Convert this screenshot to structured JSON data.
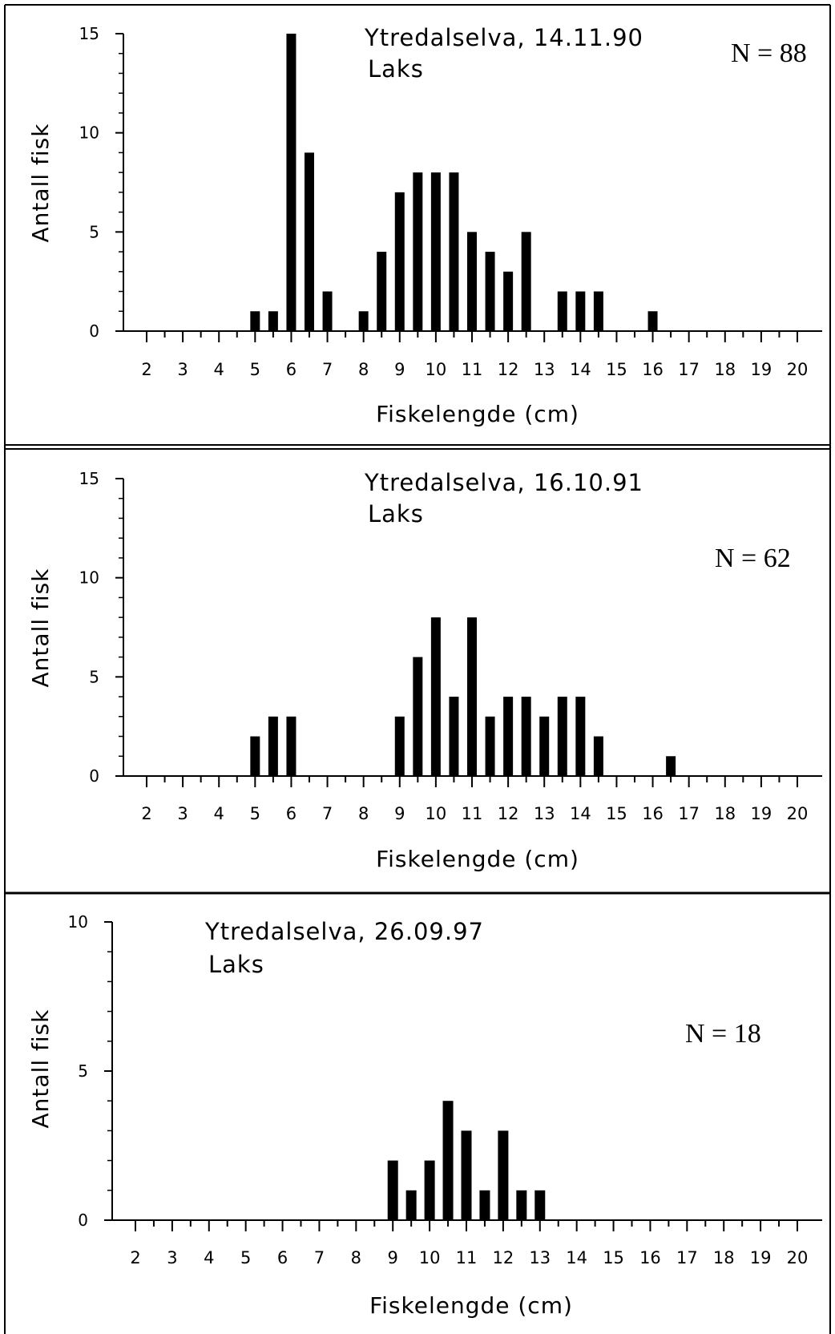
{
  "chart_data": [
    {
      "type": "bar",
      "title": "Ytredalselva, 14.11.90",
      "subtitle": "Laks",
      "n_label": "N =  88",
      "xlabel": "Fiskelengde (cm)",
      "ylabel": "Antall fisk",
      "xlim": [
        1.5,
        20.5
      ],
      "ylim": [
        0,
        15
      ],
      "yticks": [
        0,
        5,
        10,
        15
      ],
      "xticks": [
        2,
        3,
        4,
        5,
        6,
        7,
        8,
        9,
        10,
        11,
        12,
        13,
        14,
        15,
        16,
        17,
        18,
        19,
        20
      ],
      "x": [
        5,
        5.5,
        6,
        6.5,
        7,
        8,
        8.5,
        9,
        9.5,
        10,
        10.5,
        11,
        11.5,
        12,
        12.5,
        13.5,
        14,
        14.5,
        16
      ],
      "values": [
        1,
        1,
        15,
        9,
        2,
        1,
        4,
        7,
        8,
        8,
        8,
        5,
        4,
        3,
        5,
        2,
        2,
        2,
        1
      ]
    },
    {
      "type": "bar",
      "title": "Ytredalselva, 16.10.91",
      "subtitle": "Laks",
      "n_label": "N = 62",
      "xlabel": "Fiskelengde (cm)",
      "ylabel": "Antall fisk",
      "xlim": [
        1.5,
        20.5
      ],
      "ylim": [
        0,
        15
      ],
      "yticks": [
        0,
        5,
        10,
        15
      ],
      "xticks": [
        2,
        3,
        4,
        5,
        6,
        7,
        8,
        9,
        10,
        11,
        12,
        13,
        14,
        15,
        16,
        17,
        18,
        19,
        20
      ],
      "x": [
        5,
        5.5,
        6,
        9,
        9.5,
        10,
        10.5,
        11,
        11.5,
        12,
        12.5,
        13,
        13.5,
        14,
        14.5,
        16.5
      ],
      "values": [
        2,
        3,
        3,
        3,
        6,
        8,
        4,
        8,
        3,
        4,
        4,
        3,
        4,
        4,
        2,
        1
      ]
    },
    {
      "type": "bar",
      "title": "Ytredalselva, 26.09.97",
      "subtitle": "Laks",
      "n_label": "N = 18",
      "xlabel": "Fiskelengde (cm)",
      "ylabel": "Antall fisk",
      "xlim": [
        1.5,
        20.5
      ],
      "ylim": [
        0,
        10
      ],
      "yticks": [
        0,
        5,
        10
      ],
      "xticks": [
        2,
        3,
        4,
        5,
        6,
        7,
        8,
        9,
        10,
        11,
        12,
        13,
        14,
        15,
        16,
        17,
        18,
        19,
        20
      ],
      "x": [
        9,
        9.5,
        10,
        10.5,
        11,
        11.5,
        12,
        12.5,
        13
      ],
      "values": [
        2,
        1,
        2,
        4,
        3,
        1,
        3,
        1,
        1
      ]
    }
  ]
}
